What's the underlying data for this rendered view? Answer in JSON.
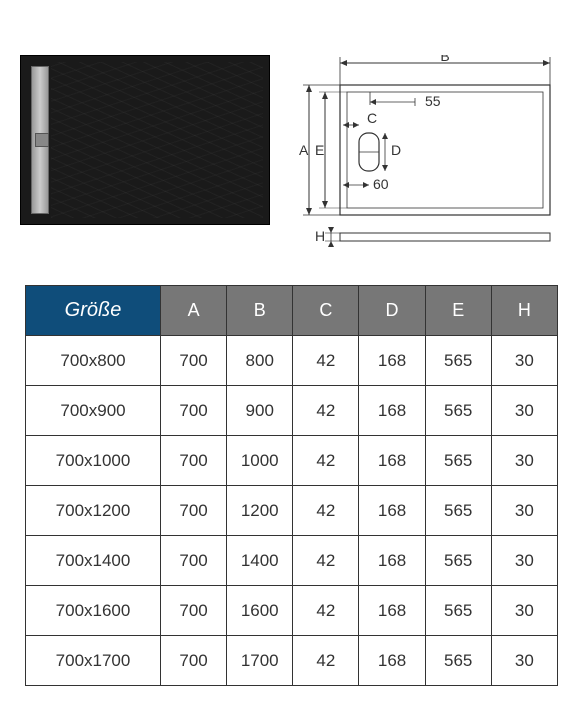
{
  "diagram": {
    "labels": {
      "A": "A",
      "B": "B",
      "C": "C",
      "D": "D",
      "E": "E",
      "H": "H"
    },
    "fixed": {
      "offset_top": "55",
      "offset_side": "60"
    },
    "line_color": "#333333",
    "fill_color": "#ffffff"
  },
  "table": {
    "header": {
      "size": "Größe",
      "cols": [
        "A",
        "B",
        "C",
        "D",
        "E",
        "H"
      ]
    },
    "rows": [
      {
        "size": "700x800",
        "vals": [
          "700",
          "800",
          "42",
          "168",
          "565",
          "30"
        ]
      },
      {
        "size": "700x900",
        "vals": [
          "700",
          "900",
          "42",
          "168",
          "565",
          "30"
        ]
      },
      {
        "size": "700x1000",
        "vals": [
          "700",
          "1000",
          "42",
          "168",
          "565",
          "30"
        ]
      },
      {
        "size": "700x1200",
        "vals": [
          "700",
          "1200",
          "42",
          "168",
          "565",
          "30"
        ]
      },
      {
        "size": "700x1400",
        "vals": [
          "700",
          "1400",
          "42",
          "168",
          "565",
          "30"
        ]
      },
      {
        "size": "700x1600",
        "vals": [
          "700",
          "1600",
          "42",
          "168",
          "565",
          "30"
        ]
      },
      {
        "size": "700x1700",
        "vals": [
          "700",
          "1700",
          "42",
          "168",
          "565",
          "30"
        ]
      }
    ],
    "header_bg_size": "#0f4d7a",
    "header_bg_dim": "#777777",
    "border_color": "#333333",
    "cell_font_size": 17
  }
}
